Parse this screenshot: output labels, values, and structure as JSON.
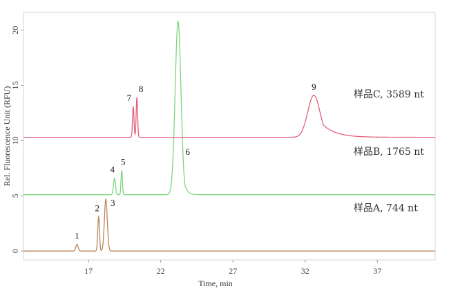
{
  "chart_data": {
    "type": "line",
    "title": "",
    "xlabel": "Time, min",
    "ylabel": "Rel. Fluorescence Unit (RFU)",
    "xlim": [
      12.5,
      41
    ],
    "ylim": [
      -0.8,
      21.6
    ],
    "x_ticks": [
      17,
      22,
      27,
      32,
      37
    ],
    "y_ticks": [
      0,
      5,
      10,
      15,
      20
    ],
    "x_tick_labels": [
      "17",
      "22",
      "27",
      "32",
      "37"
    ],
    "y_tick_labels": [
      "0",
      "5",
      "10",
      "15",
      "20"
    ],
    "grid": false,
    "series": [
      {
        "name": "样品A, 744 nt",
        "color": "#b9865a",
        "baseline": 0.0,
        "peaks": [
          {
            "label": "1",
            "x": 16.2,
            "height": 0.6,
            "width": 0.08,
            "tail": 0
          },
          {
            "label": "2",
            "x": 17.7,
            "height": 3.1,
            "width": 0.06,
            "tail": 0
          },
          {
            "label": "3",
            "x": 18.2,
            "height": 4.7,
            "width": 0.1,
            "tail": 0
          }
        ]
      },
      {
        "name": "样品B, 1765 nt",
        "color": "#7dd67d",
        "baseline": 5.1,
        "peaks": [
          {
            "label": "4",
            "x": 18.8,
            "height": 1.5,
            "width": 0.07,
            "tail": 0
          },
          {
            "label": "5",
            "x": 19.3,
            "height": 2.2,
            "width": 0.05,
            "tail": 0
          },
          {
            "label": "6",
            "x": 23.2,
            "height": 15.7,
            "width": 0.2,
            "tail": 0.2
          }
        ]
      },
      {
        "name": "样品C, 3589 nt",
        "color": "#e2607c",
        "baseline": 10.3,
        "peaks": [
          {
            "label": "7",
            "x": 20.1,
            "height": 2.8,
            "width": 0.05,
            "tail": 0
          },
          {
            "label": "8",
            "x": 20.35,
            "height": 3.6,
            "width": 0.05,
            "tail": 0
          },
          {
            "label": "9",
            "x": 32.6,
            "height": 3.8,
            "width": 0.42,
            "tail": 0.9
          }
        ]
      }
    ]
  }
}
